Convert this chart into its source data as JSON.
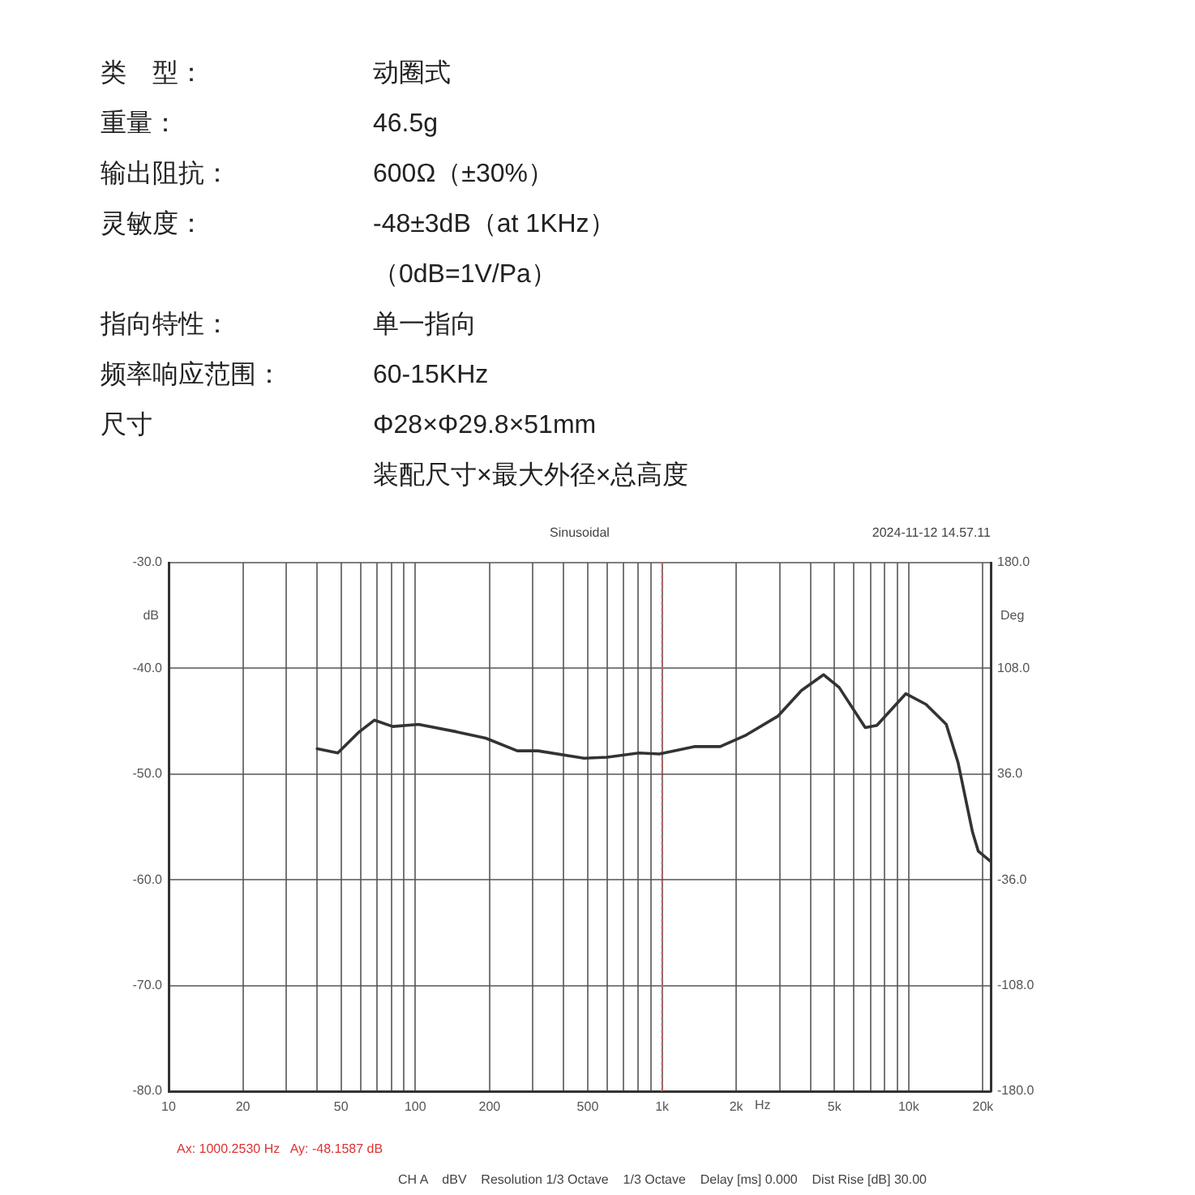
{
  "chart_data": [
    {
      "type": "other",
      "annotations": [
        "类　型：",
        "动圈式"
      ]
    },
    {
      "type": "other",
      "annotations": [
        "重量：",
        "46.5g"
      ]
    },
    {
      "type": "other",
      "annotations": [
        "输出阻抗：",
        "600Ω（±30%）"
      ]
    },
    {
      "type": "other",
      "annotations": [
        "灵敏度：",
        "-48±3dB（at 1KHz）",
        "（0dB=1V/Pa）"
      ]
    },
    {
      "type": "other",
      "annotations": [
        "指向特性：",
        "单一指向"
      ]
    },
    {
      "type": "other",
      "annotations": [
        "频率响应范围：",
        "60-15KHz"
      ]
    },
    {
      "type": "other",
      "annotations": [
        "尺寸",
        "Φ28×Φ29.8×51mm",
        "装配尺寸×最大外径×总高度"
      ]
    },
    {
      "type": "line",
      "title": "Sinusoidal",
      "subtitle": "2024-11-12 14.57.11",
      "xlabel": "Hz",
      "ylabel": "dB",
      "y2label": "Deg",
      "log": "x",
      "grid": true,
      "legend": false,
      "marker": "none",
      "line_style": "solid",
      "xlim": [
        10,
        21500
      ],
      "xticks": [
        10,
        {
          "value": 20,
          "label": "20"
        },
        {
          "value": 30,
          "label": null
        },
        {
          "value": 40,
          "label": null
        },
        50,
        {
          "value": 60,
          "label": null
        },
        {
          "value": 70,
          "label": null
        },
        {
          "value": 80,
          "label": null
        },
        {
          "value": 90,
          "label": null
        },
        100,
        200,
        {
          "value": 300,
          "label": null
        },
        {
          "value": 400,
          "label": null
        },
        500,
        {
          "value": 600,
          "label": null
        },
        {
          "value": 700,
          "label": null
        },
        {
          "value": 800,
          "label": null
        },
        {
          "value": 900,
          "label": null
        },
        {
          "value": 1000,
          "label": "1k"
        },
        {
          "value": 2000,
          "label": "2k"
        },
        {
          "value": 3000,
          "label": null
        },
        {
          "value": 4000,
          "label": null
        },
        {
          "value": 5000,
          "label": "5k"
        },
        {
          "value": 6000,
          "label": null
        },
        {
          "value": 7000,
          "label": null
        },
        {
          "value": 8000,
          "label": null
        },
        {
          "value": 9000,
          "label": null
        },
        {
          "value": 10000,
          "label": "10k"
        },
        {
          "value": 20000,
          "label": "20k"
        }
      ],
      "ylim": [
        -80,
        -30
      ],
      "yticks": [
        {
          "value": -80,
          "label": "-80.0"
        },
        {
          "value": -70,
          "label": "-70.0"
        },
        {
          "value": -60,
          "label": "-60.0"
        },
        {
          "value": -50,
          "label": "-50.0"
        },
        {
          "value": -40,
          "label": "-40.0"
        },
        {
          "value": -30,
          "label": "-30.0"
        }
      ],
      "y2lim": [
        -180,
        180
      ],
      "y2ticks": [
        {
          "value": -180,
          "label": "-180.0"
        },
        {
          "value": -108,
          "label": "-108.0"
        },
        {
          "value": -36,
          "label": "-36.0"
        },
        {
          "value": 36,
          "label": "36.0"
        },
        {
          "value": 108,
          "label": "108.0"
        },
        {
          "value": 180,
          "label": "180.0"
        }
      ],
      "ref_lines": [
        {
          "axis": "x",
          "value": 1000.253,
          "label": null,
          "color": "#e06060",
          "line_style": "dotted"
        }
      ],
      "x": [
        40,
        48.5,
        58.6,
        68.2,
        81,
        103,
        147,
        193,
        259,
        314,
        483,
        600,
        807,
        975,
        1351,
        1722,
        2197,
        2958,
        3673,
        4516,
        5224,
        6668,
        7430,
        9730,
        11750,
        14200,
        15850,
        18150,
        19150,
        21300
      ],
      "series": [
        {
          "color": "#333333",
          "values": [
            -47.6,
            -48.0,
            -46.1,
            -44.9,
            -45.5,
            -45.3,
            -46.0,
            -46.6,
            -47.8,
            -47.8,
            -48.5,
            -48.4,
            -48.0,
            -48.1,
            -47.4,
            -47.4,
            -46.3,
            -44.5,
            -42.1,
            -40.6,
            -41.8,
            -45.6,
            -45.4,
            -42.4,
            -43.4,
            -45.3,
            -48.9,
            -55.5,
            -57.3,
            -58.2
          ]
        }
      ],
      "annotations": [
        "Ax: 1000.2530 Hz   Ay: -48.1587 dB",
        "CH A    dBV    Resolution 1/3 Octave    1/3 Octave    Delay [ms] 0.000    Dist Rise [dB] 30.00"
      ]
    }
  ]
}
